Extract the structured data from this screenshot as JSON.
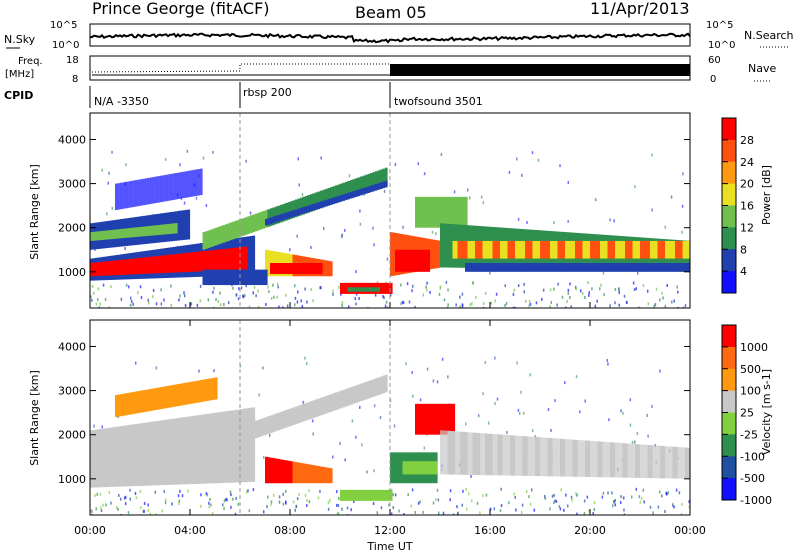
{
  "header": {
    "station": "Prince George (fitACF)",
    "beam": "Beam 05",
    "date": "11/Apr/2013"
  },
  "chart_data": [
    {
      "type": "line",
      "panel": "noise",
      "left_label": "N.Sky",
      "right_label": "N.Search",
      "left_ticks": [
        "10^5",
        "10^0"
      ],
      "right_ticks": [
        "10^5",
        "10^0"
      ]
    },
    {
      "type": "line",
      "panel": "frequency",
      "left_label_lines": [
        "Freq.",
        "[MHz]"
      ],
      "right_label": "Nave",
      "left_ticks": [
        "18",
        "8"
      ],
      "right_ticks": [
        "60",
        "0"
      ]
    },
    {
      "type": "table",
      "panel": "cpid",
      "label": "CPID",
      "segments": [
        {
          "name": "N/A -3350",
          "start_hour": 0
        },
        {
          "name": "rbsp 200",
          "start_hour": 6
        },
        {
          "name": "twofsound 3501",
          "start_hour": 12
        }
      ]
    },
    {
      "type": "heatmap",
      "panel": "power",
      "ylabel": "Slant Range [km]",
      "ylim": [
        180,
        4600
      ],
      "yticks": [
        "1000",
        "2000",
        "3000",
        "4000"
      ],
      "colorbar_label": "Power [dB]",
      "colorbar_ticks": [
        "28",
        "24",
        "20",
        "16",
        "12",
        "8",
        "4"
      ],
      "colors": [
        "#1010ff",
        "#2040b0",
        "#2f8f4f",
        "#6fc04f",
        "#e8e020",
        "#ff9a10",
        "#ff5010",
        "#ff0000"
      ]
    },
    {
      "type": "heatmap",
      "panel": "velocity",
      "ylabel": "Slant Range [km]",
      "ylim": [
        180,
        4600
      ],
      "yticks": [
        "1000",
        "2000",
        "3000",
        "4000"
      ],
      "colorbar_label": "Velocity [m s-1]",
      "colorbar_ticks": [
        "1000",
        "500",
        "100",
        "25",
        "-25",
        "-100",
        "-500",
        "-1000"
      ],
      "colors": [
        "#1010ff",
        "#2050a0",
        "#2f8f4f",
        "#80d040",
        "#c8c8c8",
        "#ff9a10",
        "#ff6a10",
        "#ff0000"
      ]
    }
  ],
  "xaxis": {
    "label": "Time UT",
    "ticks": [
      "00:00",
      "04:00",
      "08:00",
      "12:00",
      "16:00",
      "20:00",
      "00:00"
    ]
  }
}
